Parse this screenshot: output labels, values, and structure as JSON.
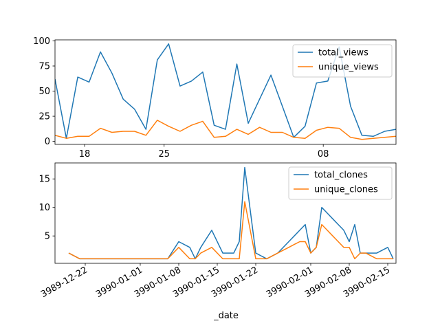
{
  "chart_data": [
    {
      "type": "line",
      "xlabel": "",
      "ylabel": "",
      "xlim": [
        0,
        30
      ],
      "ylim": [
        -3,
        101
      ],
      "yticks": [
        0,
        25,
        50,
        75,
        100
      ],
      "xticks": [
        {
          "x": 2.6,
          "label": "18"
        },
        {
          "x": 9.6,
          "label": "25"
        },
        {
          "x": 23.6,
          "label": "08"
        }
      ],
      "legend": "top-right",
      "series": [
        {
          "name": "total_views",
          "color": "#1f77b4",
          "x": [
            0,
            1,
            2,
            3,
            4,
            5,
            6,
            7,
            8,
            9,
            10,
            11,
            12,
            13,
            14,
            15,
            16,
            17,
            18,
            19,
            20,
            21,
            22,
            23,
            24,
            25,
            26,
            27,
            28,
            29,
            30
          ],
          "y": [
            62,
            3,
            64,
            59,
            89,
            68,
            42,
            32,
            12,
            81,
            97,
            55,
            60,
            69,
            16,
            12,
            77,
            18,
            42,
            66,
            35,
            4,
            15,
            58,
            60,
            94,
            35,
            6,
            5,
            10,
            12
          ]
        },
        {
          "name": "unique_views",
          "color": "#ff7f0e",
          "x": [
            0,
            1,
            2,
            3,
            4,
            5,
            6,
            7,
            8,
            9,
            10,
            11,
            12,
            13,
            14,
            15,
            16,
            17,
            18,
            19,
            20,
            21,
            22,
            23,
            24,
            25,
            26,
            27,
            28,
            29,
            30
          ],
          "y": [
            6,
            3,
            5,
            5,
            13,
            9,
            10,
            10,
            6,
            21,
            15,
            10,
            16,
            20,
            4,
            5,
            12,
            7,
            14,
            9,
            9,
            4,
            3,
            11,
            14,
            13,
            4,
            2,
            3,
            4,
            5
          ]
        }
      ]
    },
    {
      "type": "line",
      "xlabel": "_date",
      "ylabel": "",
      "xlim": [
        0,
        62
      ],
      "ylim": [
        0.2,
        17.8
      ],
      "yticks": [
        5,
        10,
        15
      ],
      "xticks": [
        {
          "x": 5.5,
          "label": "3989-12-22"
        },
        {
          "x": 15.5,
          "label": "3990-01-01"
        },
        {
          "x": 22.5,
          "label": "3990-01-08"
        },
        {
          "x": 29.5,
          "label": "3990-01-15"
        },
        {
          "x": 36.5,
          "label": "3990-01-22"
        },
        {
          "x": 46.5,
          "label": "3990-02-01"
        },
        {
          "x": 53.5,
          "label": "3990-02-08"
        },
        {
          "x": 60.5,
          "label": "3990-02-15"
        }
      ],
      "legend": "top-right",
      "series": [
        {
          "name": "total_clones",
          "color": "#1f77b4",
          "x": [
            2.5,
            4.5,
            20.5,
            22.5,
            24.5,
            25.5,
            26.5,
            28.5,
            30.5,
            32.5,
            33.5,
            34.5,
            36.5,
            38.5,
            40.5,
            42.5,
            43.5,
            44.5,
            45.5,
            46.5,
            47.5,
            48.5,
            49.5,
            50.5,
            51.5,
            52.5,
            53.5,
            54.5,
            55.5,
            56.5,
            58.5,
            60.5,
            61.5
          ],
          "y": [
            2,
            1,
            1,
            4,
            3,
            1,
            3,
            6,
            2,
            2,
            4,
            17,
            2,
            1,
            2,
            4,
            5,
            6,
            7,
            2,
            3,
            10,
            9,
            8,
            7,
            6,
            4,
            7,
            2,
            2,
            2,
            3,
            1
          ]
        },
        {
          "name": "unique_clones",
          "color": "#ff7f0e",
          "x": [
            2.5,
            4.5,
            20.5,
            22.5,
            24.5,
            25.5,
            26.5,
            28.5,
            30.5,
            32.5,
            33.5,
            34.5,
            36.5,
            38.5,
            40.5,
            42.5,
            43.5,
            44.5,
            45.5,
            46.5,
            47.5,
            48.5,
            49.5,
            50.5,
            51.5,
            52.5,
            53.5,
            54.5,
            55.5,
            56.5,
            58.5,
            60.5,
            61.5
          ],
          "y": [
            2,
            1,
            1,
            3,
            1,
            1,
            2,
            3,
            1,
            1,
            1,
            11,
            1,
            1,
            2,
            3,
            3.5,
            4,
            4,
            2,
            3,
            7,
            6,
            5,
            4,
            3,
            3,
            1,
            2,
            2,
            1,
            1,
            1
          ]
        }
      ]
    }
  ]
}
